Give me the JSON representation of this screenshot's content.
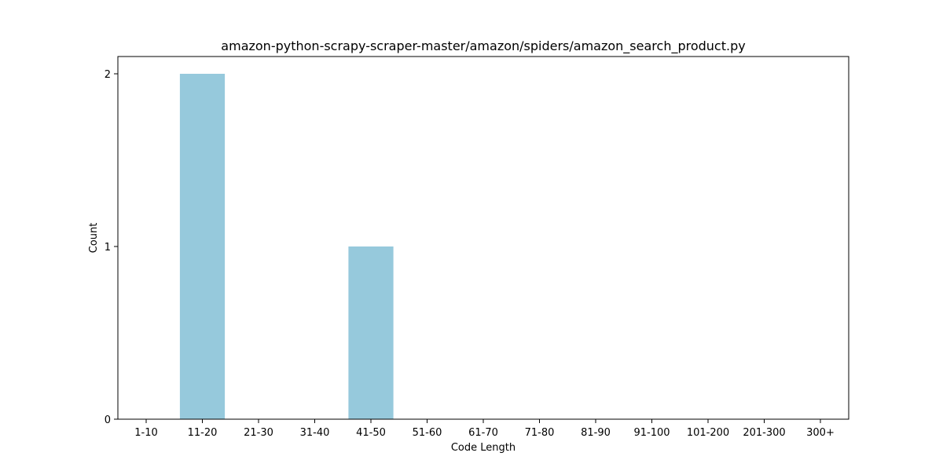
{
  "chart_data": {
    "type": "bar",
    "title": "amazon-python-scrapy-scraper-master/amazon/spiders/amazon_search_product.py",
    "xlabel": "Code Length",
    "ylabel": "Count",
    "categories": [
      "1-10",
      "11-20",
      "21-30",
      "31-40",
      "41-50",
      "51-60",
      "61-70",
      "71-80",
      "81-90",
      "91-100",
      "101-200",
      "201-300",
      "300+"
    ],
    "values": [
      0,
      2,
      0,
      0,
      1,
      0,
      0,
      0,
      0,
      0,
      0,
      0,
      0
    ],
    "ylim": [
      0,
      2.1
    ],
    "yticks": [
      0,
      1,
      2
    ],
    "bar_color": "#96c9dc",
    "grid": false,
    "legend": "none"
  }
}
